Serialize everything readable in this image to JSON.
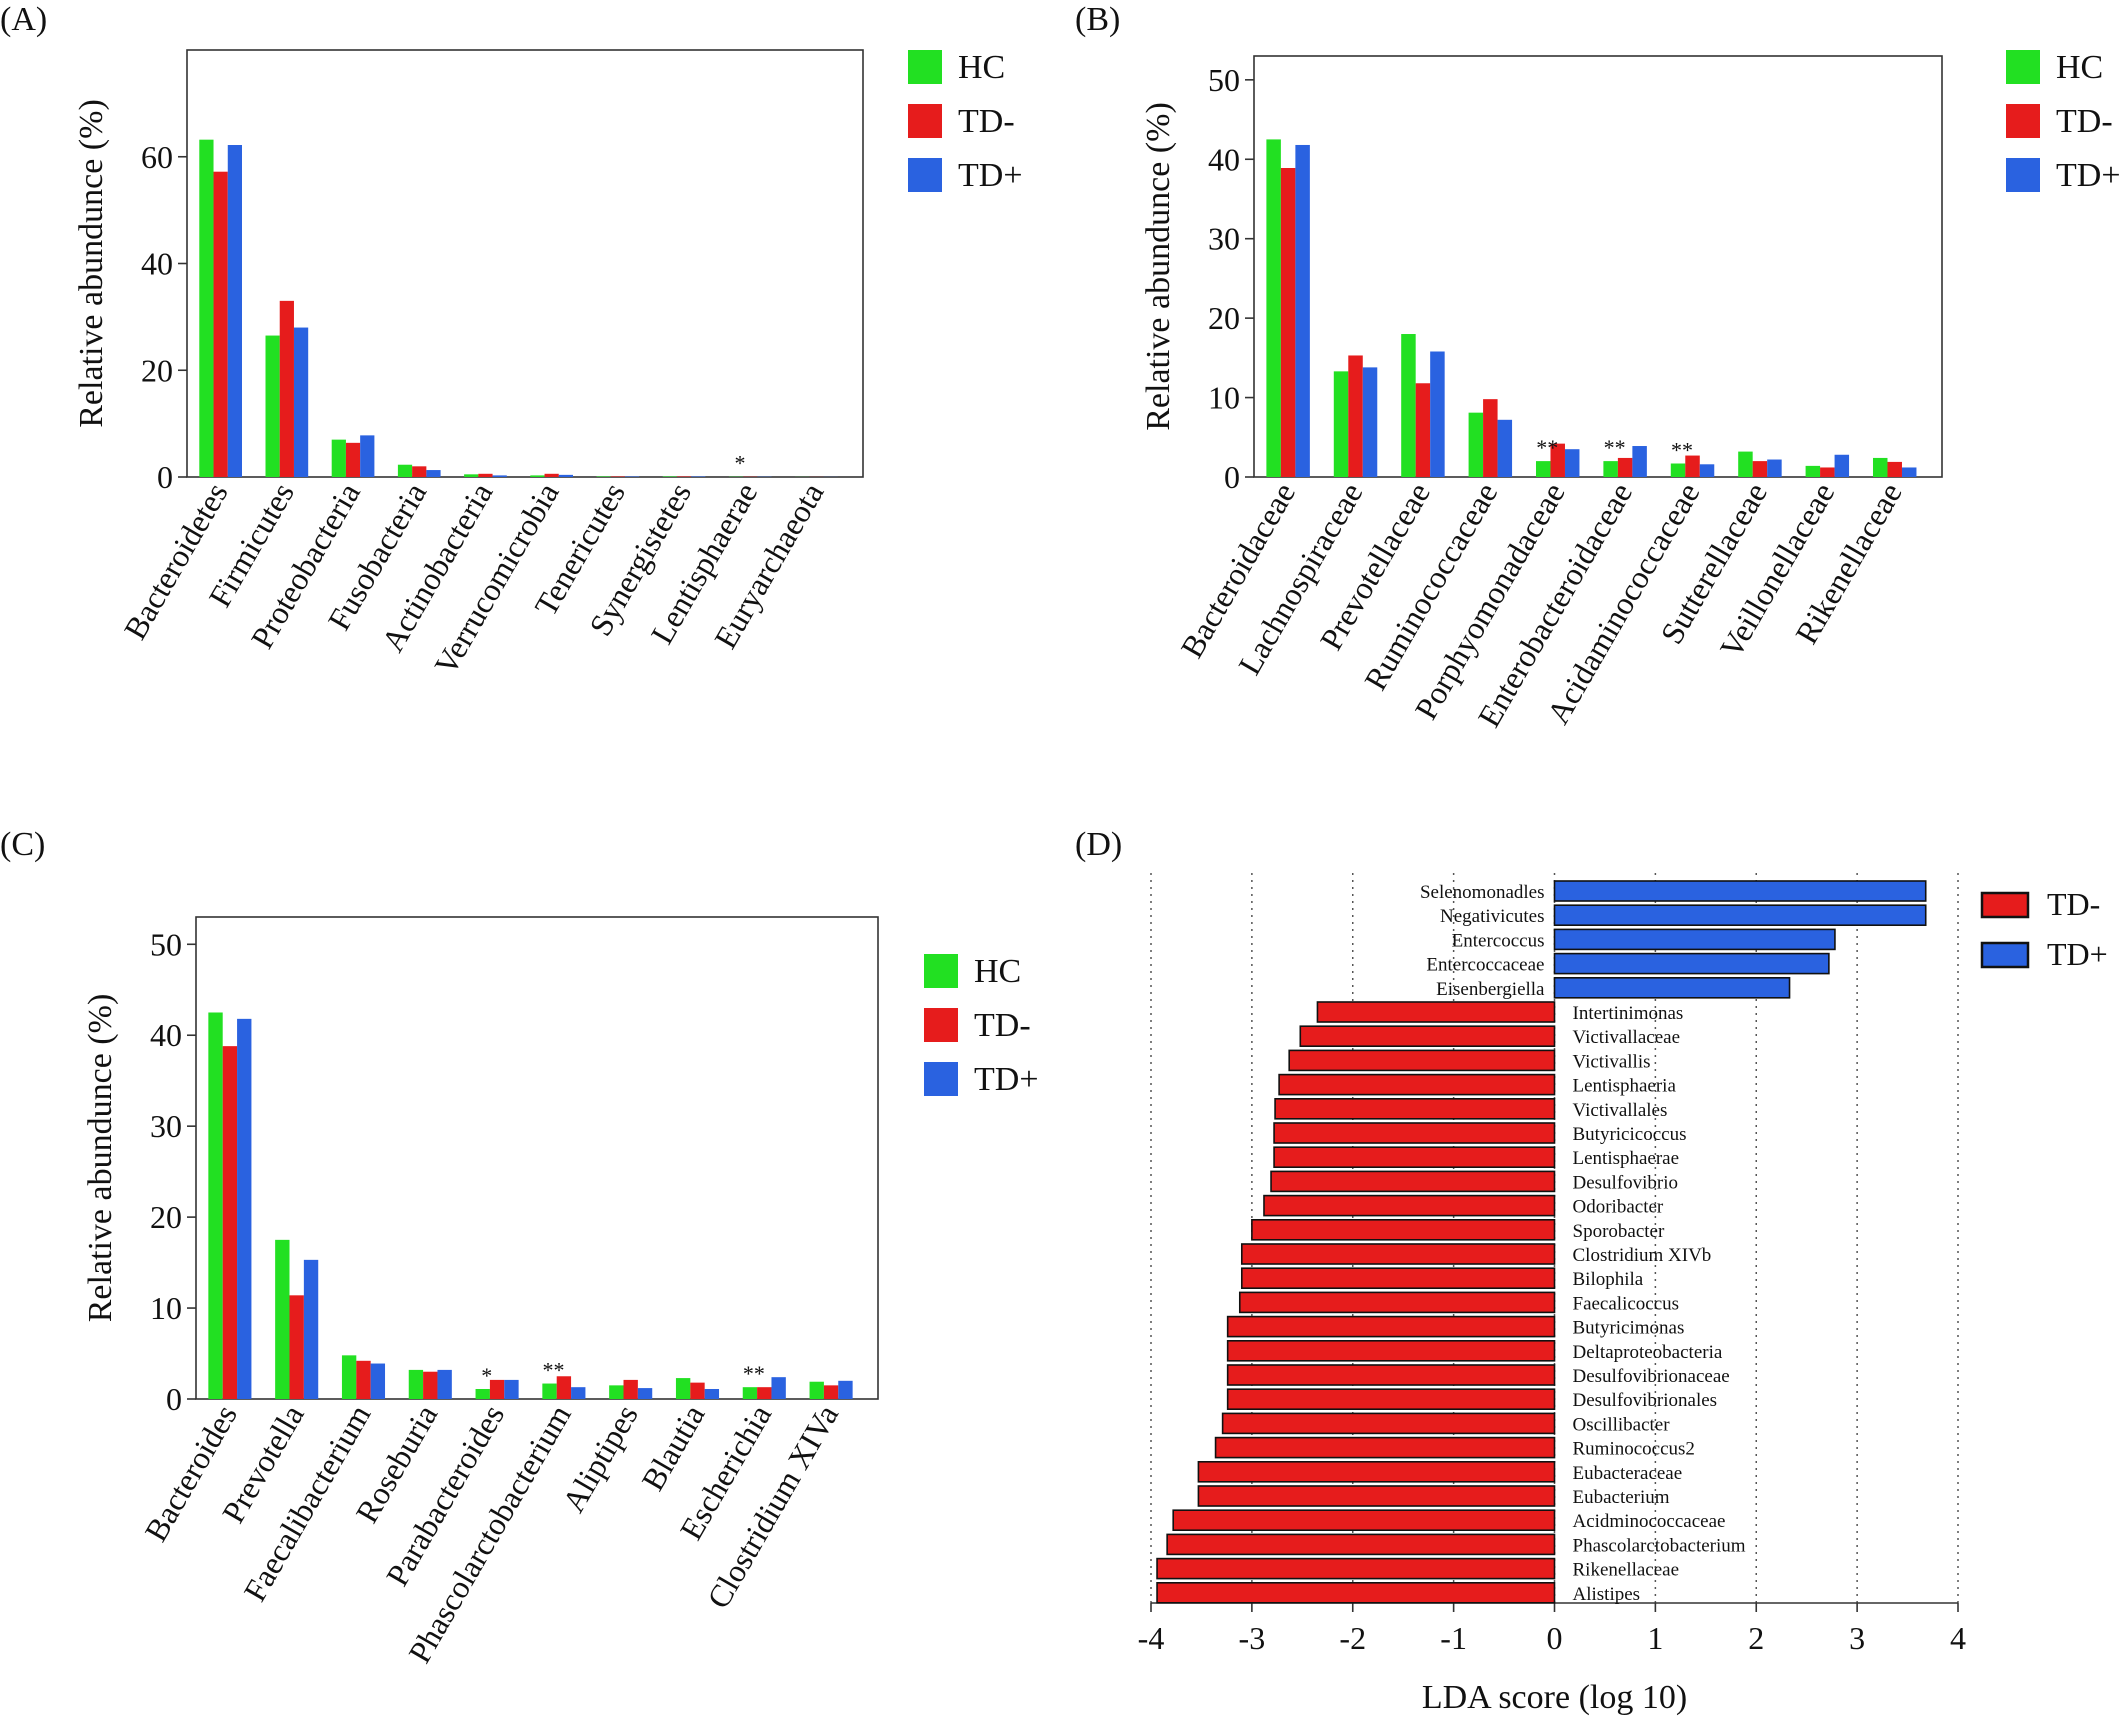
{
  "colors": {
    "HC": "#22e022",
    "TD-": "#e61c1c",
    "TD+": "#2a62e0"
  },
  "chart_data": [
    {
      "panel": "(A)",
      "type": "bar",
      "ylabel": "Relative abundunce (%)",
      "ylim": [
        0,
        80
      ],
      "yticks": [
        0,
        20,
        40,
        60
      ],
      "legend_position": "right",
      "categories": [
        "Bacteroidetes",
        "Firmicutes",
        "Proteobacteria",
        "Fusobacteria",
        "Actinobacteria",
        "Verrucomicrobia",
        "Tenericutes",
        "Synergistetes",
        "Lentisphaerae",
        "Euryarchaeota"
      ],
      "series": [
        {
          "name": "HC",
          "values": [
            63.2,
            26.5,
            7.0,
            2.3,
            0.5,
            0.3,
            0.1,
            0.1,
            0.05,
            0.02
          ]
        },
        {
          "name": "TD-",
          "values": [
            57.2,
            33.0,
            6.4,
            2.0,
            0.6,
            0.6,
            0.1,
            0.1,
            0.05,
            0.02
          ]
        },
        {
          "name": "TD+",
          "values": [
            62.2,
            28.0,
            7.8,
            1.3,
            0.3,
            0.4,
            0.1,
            0.1,
            0.05,
            0.02
          ]
        }
      ],
      "annotations": [
        {
          "category": "Lentisphaerae",
          "text": "*"
        }
      ]
    },
    {
      "panel": "(B)",
      "type": "bar",
      "ylabel": "Relative abundunce (%)",
      "ylim": [
        0,
        53
      ],
      "yticks": [
        0,
        10,
        20,
        30,
        40,
        50
      ],
      "legend_position": "right",
      "categories": [
        "Bacteroidaceae",
        "Lachnospiraceae",
        "Prevotellaceae",
        "Ruminococcaceae",
        "Porphyomonadaceae",
        "Enterobacteroidaceae",
        "Acidaminococcaceae",
        "Sutterellaceae",
        "Veillonellaceae",
        "Rikenellaceae"
      ],
      "series": [
        {
          "name": "HC",
          "values": [
            42.5,
            13.3,
            18.0,
            8.1,
            2.0,
            2.0,
            1.7,
            3.2,
            1.4,
            2.4
          ]
        },
        {
          "name": "TD-",
          "values": [
            38.9,
            15.3,
            11.8,
            9.8,
            4.2,
            2.4,
            2.7,
            2.0,
            1.2,
            1.9
          ]
        },
        {
          "name": "TD+",
          "values": [
            41.8,
            13.8,
            15.8,
            7.2,
            3.5,
            3.9,
            1.6,
            2.2,
            2.8,
            1.2
          ]
        }
      ],
      "annotations": [
        {
          "category": "Porphyomonadaceae",
          "text": "**"
        },
        {
          "category": "Enterobacteroidaceae",
          "text": "**"
        },
        {
          "category": "Acidaminococcaceae",
          "text": "**"
        }
      ]
    },
    {
      "panel": "(C)",
      "type": "bar",
      "ylabel": "Relative abundunce (%)",
      "ylim": [
        0,
        53
      ],
      "yticks": [
        0,
        10,
        20,
        30,
        40,
        50
      ],
      "legend_position": "right",
      "categories": [
        "Bacteroides",
        "Prevotella",
        "Faecalibacterium",
        "Roseburia",
        "Parabacteroides",
        "Phascolarctobacterium",
        "Aliptipes",
        "Blautia",
        "Escherichia",
        "Clostridium XIVa"
      ],
      "series": [
        {
          "name": "HC",
          "values": [
            42.5,
            17.5,
            4.8,
            3.2,
            1.1,
            1.7,
            1.5,
            2.3,
            1.3,
            1.9
          ]
        },
        {
          "name": "TD-",
          "values": [
            38.8,
            11.4,
            4.2,
            3.0,
            2.1,
            2.5,
            2.1,
            1.8,
            1.3,
            1.5
          ]
        },
        {
          "name": "TD+",
          "values": [
            41.8,
            15.3,
            3.9,
            3.2,
            2.1,
            1.3,
            1.2,
            1.1,
            2.4,
            2.0
          ]
        }
      ],
      "annotations": [
        {
          "category": "Parabacteroides",
          "text": "*"
        },
        {
          "category": "Phascolarctobacterium",
          "text": "**"
        },
        {
          "category": "Escherichia",
          "text": "**"
        }
      ]
    },
    {
      "panel": "(D)",
      "type": "bar",
      "orientation": "horizontal",
      "xlabel": "LDA  score (log 10)",
      "xlim": [
        -4,
        4
      ],
      "xticks": [
        -4,
        -3,
        -2,
        -1,
        0,
        1,
        2,
        3,
        4
      ],
      "grid": "vertical dotted",
      "legend_position": "top-right",
      "series": [
        {
          "name": "TD+",
          "categories": [
            "Selenomonadles",
            "Negativicutes",
            "Entercoccus",
            "Entercoccaceae",
            "Eisenbergiella"
          ],
          "values": [
            3.68,
            3.68,
            2.78,
            2.72,
            2.33
          ]
        },
        {
          "name": "TD-",
          "categories": [
            "Intertinimonas",
            "Victivallaceae",
            "Victivallis",
            "Lentisphaeria",
            "Victivallales",
            "Butyricicoccus",
            "Lentisphaerae",
            "Desulfovibrio",
            "Odoribacter",
            "Sporobacter",
            "Clostridium XIVb",
            "Bilophila",
            "Faecalicoccus",
            "Butyricimonas",
            "Deltaproteobacteria",
            "Desulfovibrionaceae",
            "Desulfovibrionales",
            "Oscillibacter",
            "Ruminococcus2",
            "Eubacteraceae",
            "Eubacterium",
            "Acidminococcaceae",
            "Phascolarctobacterium",
            "Rikenellaceae",
            "Alistipes"
          ],
          "values": [
            -2.35,
            -2.52,
            -2.63,
            -2.73,
            -2.77,
            -2.78,
            -2.78,
            -2.81,
            -2.88,
            -3.0,
            -3.1,
            -3.1,
            -3.12,
            -3.24,
            -3.24,
            -3.24,
            -3.24,
            -3.29,
            -3.36,
            -3.53,
            -3.53,
            -3.78,
            -3.84,
            -3.94,
            -3.94
          ]
        }
      ]
    }
  ]
}
